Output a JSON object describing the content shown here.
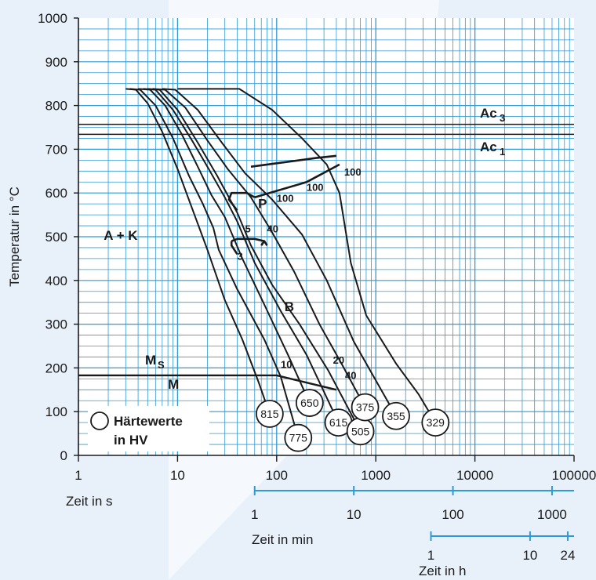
{
  "chart_data": {
    "type": "line",
    "ylabel": "Temperatur in °C",
    "xlabel": "Zeit in s",
    "xscale": "log",
    "xlim": [
      1,
      100000
    ],
    "ylim": [
      0,
      1000
    ],
    "x_ticks": [
      "1",
      "10",
      "100",
      "1000",
      "10000",
      "100000"
    ],
    "y_ticks": [
      "0",
      "100",
      "200",
      "300",
      "400",
      "500",
      "600",
      "700",
      "800",
      "900",
      "1000"
    ],
    "secondary_axes": [
      {
        "label": "Zeit in min",
        "ticks": [
          {
            "label": "1",
            "seconds": 60
          },
          {
            "label": "10",
            "seconds": 600
          },
          {
            "label": "100",
            "seconds": 6000
          },
          {
            "label": "1000",
            "seconds": 60000
          }
        ],
        "range_seconds": [
          60,
          100000
        ]
      },
      {
        "label": "Zeit in h",
        "ticks": [
          {
            "label": "1",
            "seconds": 3600
          },
          {
            "label": "10",
            "seconds": 36000
          },
          {
            "label": "24",
            "seconds": 86400
          }
        ],
        "range_seconds": [
          3600,
          100000
        ]
      }
    ],
    "reference_lines": [
      {
        "label": "Ac",
        "subscript": "3",
        "y": 757
      },
      {
        "label": "Ac",
        "subscript": "1",
        "y": 734
      }
    ],
    "ms_line": {
      "label": "M",
      "subscript": "S",
      "points": [
        [
          1,
          183
        ],
        [
          100,
          183
        ],
        [
          400,
          150
        ]
      ]
    },
    "region_labels": [
      {
        "text": "A + K",
        "x": 1.8,
        "y": 493
      },
      {
        "text": "P",
        "x": 65,
        "y": 565
      },
      {
        "text": "B",
        "x": 120,
        "y": 330
      },
      {
        "text": "M",
        "x": 8,
        "y": 152
      }
    ],
    "cooling_curves": [
      {
        "hv": "815",
        "end": [
          85,
          95
        ],
        "points": [
          [
            3,
            838
          ],
          [
            3.8,
            836
          ],
          [
            5,
            805
          ],
          [
            7,
            740
          ],
          [
            10,
            655
          ],
          [
            14,
            565
          ],
          [
            20,
            470
          ],
          [
            30,
            355
          ],
          [
            45,
            265
          ],
          [
            65,
            170
          ],
          [
            85,
            95
          ]
        ]
      },
      {
        "hv": "775",
        "end": [
          165,
          40
        ],
        "points": [
          [
            3.3,
            838
          ],
          [
            4.2,
            836
          ],
          [
            6,
            800
          ],
          [
            9,
            725
          ],
          [
            13,
            640
          ],
          [
            18,
            575
          ],
          [
            23,
            520
          ],
          [
            26,
            470
          ],
          [
            40,
            380
          ],
          [
            75,
            265
          ],
          [
            110,
            180
          ],
          [
            165,
            40
          ]
        ]
      },
      {
        "hv": "650",
        "end": [
          215,
          120
        ],
        "points": [
          [
            4,
            838
          ],
          [
            5.3,
            836
          ],
          [
            7.5,
            800
          ],
          [
            11,
            735
          ],
          [
            16,
            660
          ],
          [
            22,
            595
          ],
          [
            30,
            545
          ],
          [
            45,
            450
          ],
          [
            75,
            345
          ],
          [
            130,
            230
          ],
          [
            215,
            120
          ]
        ]
      },
      {
        "hv": "615",
        "end": [
          420,
          75
        ],
        "points": [
          [
            4.5,
            838
          ],
          [
            6,
            836
          ],
          [
            9,
            790
          ],
          [
            14,
            720
          ],
          [
            20,
            660
          ],
          [
            30,
            590
          ],
          [
            40,
            535
          ],
          [
            60,
            440
          ],
          [
            110,
            330
          ],
          [
            200,
            230
          ],
          [
            420,
            75
          ]
        ]
      },
      {
        "hv": "505",
        "end": [
          700,
          55
        ],
        "points": [
          [
            5,
            838
          ],
          [
            6.6,
            836
          ],
          [
            10,
            790
          ],
          [
            16,
            715
          ],
          [
            25,
            640
          ],
          [
            40,
            555
          ],
          [
            55,
            480
          ],
          [
            90,
            390
          ],
          [
            170,
            300
          ],
          [
            330,
            195
          ],
          [
            700,
            55
          ]
        ]
      },
      {
        "hv": "375",
        "end": [
          780,
          110
        ],
        "points": [
          [
            5.6,
            838
          ],
          [
            7.5,
            836
          ],
          [
            12,
            795
          ],
          [
            20,
            720
          ],
          [
            32,
            655
          ],
          [
            55,
            590
          ],
          [
            90,
            510
          ],
          [
            150,
            420
          ],
          [
            270,
            300
          ],
          [
            450,
            210
          ],
          [
            780,
            110
          ]
        ]
      },
      {
        "hv": "355",
        "end": [
          1600,
          90
        ],
        "points": [
          [
            7,
            838
          ],
          [
            9.5,
            836
          ],
          [
            16,
            790
          ],
          [
            28,
            715
          ],
          [
            48,
            645
          ],
          [
            90,
            585
          ],
          [
            180,
            505
          ],
          [
            320,
            400
          ],
          [
            600,
            260
          ],
          [
            1600,
            90
          ]
        ]
      },
      {
        "hv": "329",
        "end": [
          4000,
          75
        ],
        "points": [
          [
            10,
            838
          ],
          [
            42,
            838
          ],
          [
            90,
            790
          ],
          [
            180,
            725
          ],
          [
            320,
            665
          ],
          [
            430,
            600
          ],
          [
            560,
            440
          ],
          [
            800,
            320
          ],
          [
            1600,
            210
          ],
          [
            2700,
            140
          ],
          [
            4000,
            75
          ]
        ]
      }
    ],
    "transformation_lines": [
      {
        "name": "pearlite-start",
        "points": [
          [
            55,
            660
          ],
          [
            250,
            680
          ],
          [
            400,
            685
          ]
        ]
      },
      {
        "name": "pearlite-end",
        "points": [
          [
            60,
            590
          ],
          [
            200,
            625
          ],
          [
            430,
            665
          ]
        ]
      },
      {
        "name": "pearlite-nose",
        "points": [
          [
            60,
            590
          ],
          [
            50,
            600
          ],
          [
            35,
            600
          ],
          [
            33,
            585
          ],
          [
            40,
            560
          ]
        ]
      },
      {
        "name": "bainite-start",
        "points": [
          [
            35,
            490
          ],
          [
            35,
            480
          ],
          [
            40,
            460
          ]
        ]
      },
      {
        "name": "bainite-bulge",
        "points": [
          [
            70,
            480
          ],
          [
            75,
            490
          ],
          [
            60,
            495
          ],
          [
            40,
            495
          ],
          [
            35,
            490
          ]
        ]
      },
      {
        "name": "bainite-end",
        "points": [
          [
            75,
            490
          ],
          [
            80,
            480
          ]
        ]
      }
    ],
    "fraction_labels": [
      {
        "text": "100",
        "x": 480,
        "y": 640
      },
      {
        "text": "100",
        "x": 200,
        "y": 605
      },
      {
        "text": "100",
        "x": 100,
        "y": 580
      },
      {
        "text": "40",
        "x": 80,
        "y": 510
      },
      {
        "text": "5",
        "x": 48,
        "y": 510
      },
      {
        "text": "3",
        "x": 40,
        "y": 447
      },
      {
        "text": "10",
        "x": 110,
        "y": 200
      },
      {
        "text": "20",
        "x": 370,
        "y": 210
      },
      {
        "text": "40",
        "x": 490,
        "y": 175
      }
    ],
    "legend": {
      "text_line1": "Härtewerte",
      "text_line2": "in HV",
      "placement": "bottom-left"
    }
  }
}
